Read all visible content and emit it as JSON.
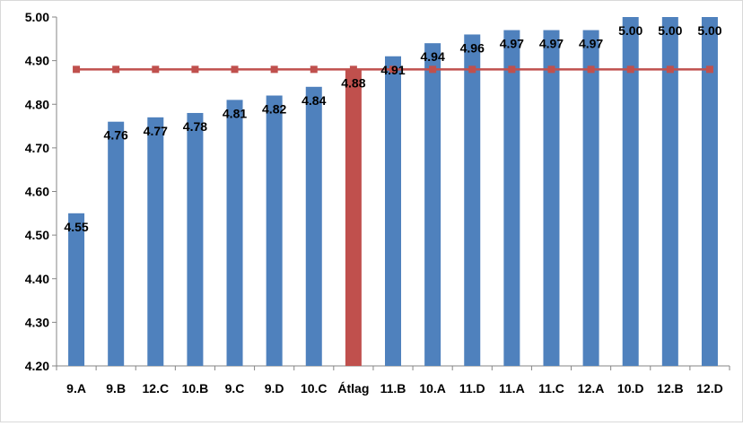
{
  "chart_data": {
    "type": "bar",
    "categories": [
      "9.A",
      "9.B",
      "12.C",
      "10.B",
      "9.C",
      "9.D",
      "10.C",
      "Átlag",
      "11.B",
      "10.A",
      "11.D",
      "11.A",
      "11.C",
      "12.A",
      "10.D",
      "12.B",
      "12.D"
    ],
    "values": [
      4.55,
      4.76,
      4.77,
      4.78,
      4.81,
      4.82,
      4.84,
      4.88,
      4.91,
      4.94,
      4.96,
      4.97,
      4.97,
      4.97,
      5.0,
      5.0,
      5.0
    ],
    "data_labels": [
      "4.55",
      "4.76",
      "4.77",
      "4.78",
      "4.81",
      "4.82",
      "4.84",
      "4.88",
      "4.91",
      "4.94",
      "4.96",
      "4.97",
      "4.97",
      "4.97",
      "5.00",
      "5.00",
      "5.00"
    ],
    "highlight_category": "Átlag",
    "reference_line": {
      "type": "line",
      "value": 4.88
    },
    "ylim": [
      4.2,
      5.0
    ],
    "yticks": [
      "4.20",
      "4.30",
      "4.40",
      "4.50",
      "4.60",
      "4.70",
      "4.80",
      "4.90",
      "5.00"
    ],
    "grid": false,
    "legend": "none",
    "title": "",
    "xlabel": "",
    "ylabel": ""
  },
  "colors": {
    "bar": "#4F81BD",
    "highlight_bar": "#C0504D",
    "line": "#C0504D",
    "axis": "#868686",
    "text": "#000000"
  }
}
